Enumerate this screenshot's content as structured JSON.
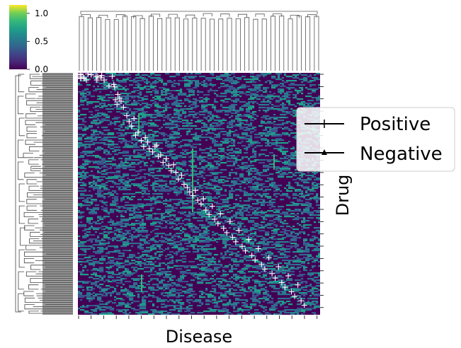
{
  "chart_data": {
    "type": "heatmap",
    "title": "",
    "xlabel": "Disease",
    "ylabel": "Drug",
    "colormap": "viridis",
    "colorbar": {
      "range": [
        0.0,
        1.15
      ],
      "ticks": [
        {
          "value": 0.0,
          "label": "0.0"
        },
        {
          "value": 0.5,
          "label": "0.5"
        },
        {
          "value": 1.0,
          "label": "1.0"
        }
      ]
    },
    "values_description_levels": [
      0.0,
      0.5,
      1.0
    ],
    "dendrograms": {
      "rows": true,
      "columns": true
    },
    "legend": {
      "placement": "right",
      "entries": [
        {
          "label": "Positive",
          "marker": "+"
        },
        {
          "label": "Negative",
          "marker": "^"
        }
      ]
    },
    "annotations": {
      "marker": "+",
      "color": "#ffffff",
      "points": [
        [
          3,
          7
        ],
        [
          3,
          6
        ],
        [
          3,
          4
        ],
        [
          3,
          2
        ],
        [
          3,
          1
        ],
        [
          7,
          6
        ],
        [
          7,
          7
        ],
        [
          10,
          9
        ],
        [
          12,
          1
        ],
        [
          16,
          2
        ],
        [
          22,
          4
        ],
        [
          23,
          9
        ],
        [
          24,
          4
        ],
        [
          28,
          6
        ],
        [
          29,
          3
        ],
        [
          32,
          9
        ],
        [
          38,
          17
        ],
        [
          42,
          4
        ],
        [
          45,
          18
        ],
        [
          44,
          15
        ],
        [
          49,
          28
        ],
        [
          46,
          35
        ],
        [
          48,
          41
        ],
        [
          51,
          33
        ],
        [
          53,
          37
        ],
        [
          56,
          45
        ],
        [
          60,
          56
        ],
        [
          63,
          64
        ],
        [
          66,
          70
        ],
        [
          69,
          60
        ],
        [
          71,
          82
        ],
        [
          74,
          78
        ],
        [
          78,
          89
        ],
        [
          81,
          97
        ],
        [
          83,
          85
        ],
        [
          86,
          91
        ],
        [
          88,
          100
        ],
        [
          92,
          104
        ],
        [
          95,
          97
        ],
        [
          97,
          95
        ],
        [
          99,
          110
        ],
        [
          102,
          108
        ],
        [
          105,
          118
        ],
        [
          109,
          113
        ],
        [
          112,
          122
        ],
        [
          115,
          129
        ],
        [
          118,
          121
        ],
        [
          121,
          131
        ],
        [
          124,
          140
        ],
        [
          128,
          135
        ],
        [
          131,
          147
        ],
        [
          135,
          151
        ],
        [
          138,
          157
        ],
        [
          142,
          162
        ],
        [
          145,
          155
        ],
        [
          148,
          168
        ],
        [
          152,
          173
        ],
        [
          155,
          166
        ],
        [
          158,
          181
        ],
        [
          162,
          187
        ],
        [
          166,
          176
        ],
        [
          169,
          193
        ],
        [
          173,
          199
        ],
        [
          176,
          186
        ],
        [
          180,
          205
        ],
        [
          184,
          211
        ],
        [
          188,
          196
        ],
        [
          191,
          217
        ],
        [
          195,
          223
        ],
        [
          199,
          208
        ],
        [
          203,
          229
        ],
        [
          207,
          235
        ],
        [
          211,
          220
        ],
        [
          215,
          241
        ],
        [
          219,
          247
        ],
        [
          223,
          232
        ],
        [
          227,
          253
        ],
        [
          231,
          259
        ],
        [
          236,
          244
        ],
        [
          240,
          265
        ],
        [
          244,
          271
        ],
        [
          248,
          256
        ],
        [
          252,
          277
        ],
        [
          256,
          283
        ],
        [
          260,
          268
        ],
        [
          264,
          289
        ],
        [
          268,
          295
        ],
        [
          272,
          280
        ],
        [
          276,
          301
        ],
        [
          280,
          307
        ]
      ]
    }
  }
}
